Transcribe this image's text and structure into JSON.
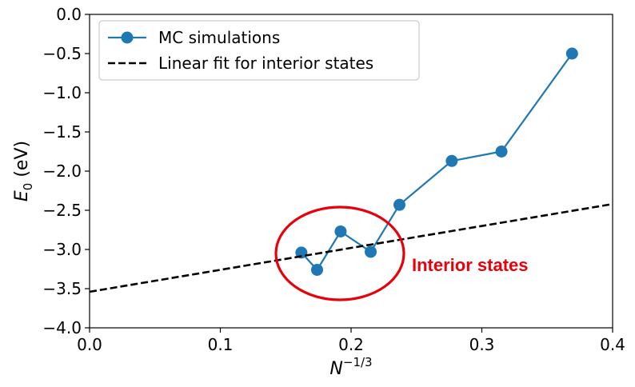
{
  "chart_data": {
    "type": "line",
    "xlabel_base": "N",
    "xlabel_exp": "−1/3",
    "ylabel_base": "E",
    "ylabel_sub": "0",
    "ylabel_rest": " (eV)",
    "xlim": [
      0.0,
      0.4
    ],
    "ylim": [
      -4.0,
      0.0
    ],
    "xticks": [
      0.0,
      0.1,
      0.2,
      0.3,
      0.4
    ],
    "xtick_labels": [
      "0.0",
      "0.1",
      "0.2",
      "0.3",
      "0.4"
    ],
    "yticks": [
      0.0,
      -0.5,
      -1.0,
      -1.5,
      -2.0,
      -2.5,
      -3.0,
      -3.5,
      -4.0
    ],
    "ytick_labels": [
      "0.0",
      "−0.5",
      "−1.0",
      "−1.5",
      "−2.0",
      "−2.5",
      "−3.0",
      "−3.5",
      "−4.0"
    ],
    "grid": false,
    "legend_position": "top-left",
    "series": [
      {
        "name": "MC simulations",
        "style": "line-markers",
        "color": "#1f77b4",
        "x": [
          0.162,
          0.174,
          0.192,
          0.215,
          0.237,
          0.277,
          0.315,
          0.369
        ],
        "y": [
          -3.04,
          -3.26,
          -2.77,
          -3.03,
          -2.43,
          -1.87,
          -1.75,
          -0.5
        ]
      },
      {
        "name": "Linear fit for interior states",
        "style": "dashed",
        "color": "#000000",
        "x": [
          0.0,
          0.4
        ],
        "y": [
          -3.54,
          -2.42
        ]
      }
    ],
    "annotation": {
      "text": "Interior states",
      "color": "#e8000b"
    }
  }
}
